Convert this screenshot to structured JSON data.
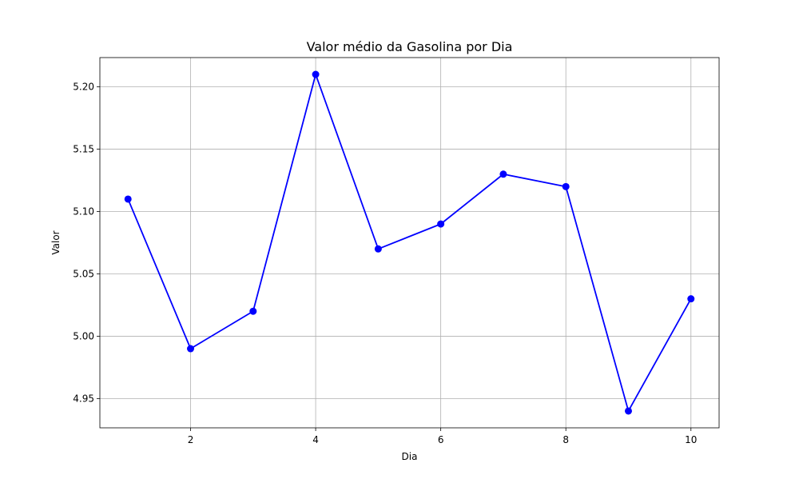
{
  "chart_data": {
    "type": "line",
    "title": "Valor médio da Gasolina por Dia",
    "xlabel": "Dia",
    "ylabel": "Valor",
    "x": [
      1,
      2,
      3,
      4,
      5,
      6,
      7,
      8,
      9,
      10
    ],
    "series": [
      {
        "values": [
          5.11,
          4.99,
          5.02,
          5.21,
          5.07,
          5.09,
          5.13,
          5.12,
          4.94,
          5.03
        ]
      }
    ],
    "xlim": [
      0.55,
      10.45
    ],
    "ylim": [
      4.9265,
      5.2235
    ],
    "xticks": [
      2,
      4,
      6,
      8,
      10
    ],
    "xtick_labels": [
      "2",
      "4",
      "6",
      "8",
      "10"
    ],
    "yticks": [
      4.95,
      5.0,
      5.05,
      5.1,
      5.15,
      5.2
    ],
    "ytick_labels": [
      "4.95",
      "5.00",
      "5.05",
      "5.10",
      "5.15",
      "5.20"
    ],
    "grid": true,
    "line_color": "#0000ff",
    "marker": "circle"
  }
}
